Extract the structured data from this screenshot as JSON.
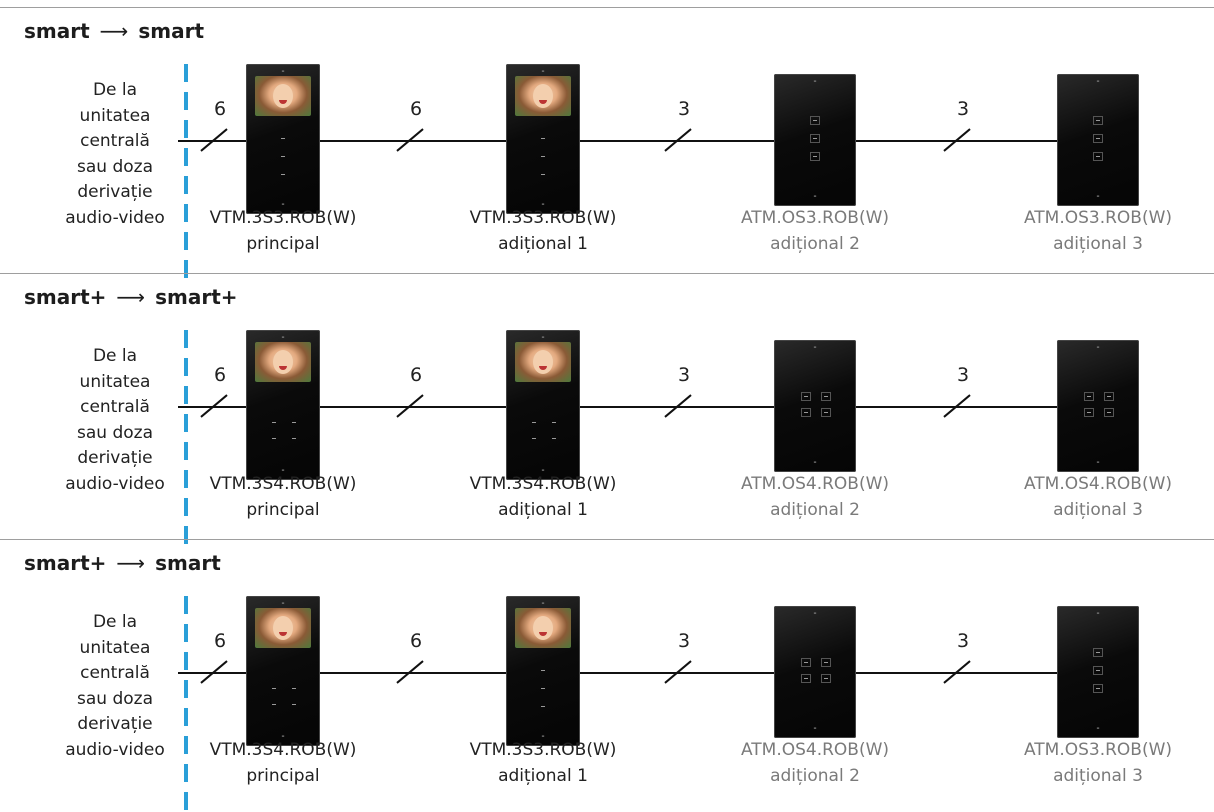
{
  "sections": [
    {
      "title_left": "smart",
      "arrow": "⟶",
      "title_right": "smart",
      "source_lines": [
        "De la",
        "unitatea",
        "centrală",
        "sau doza",
        "derivație",
        "audio-video"
      ],
      "wire_counts": [
        "6",
        "6",
        "3",
        "3"
      ],
      "devices": [
        {
          "model": "VTM.3S3.ROB(W)",
          "role": "principal",
          "type": "monitor",
          "buttons": "column"
        },
        {
          "model": "VTM.3S3.ROB(W)",
          "role": "adițional 1",
          "type": "monitor",
          "buttons": "column"
        },
        {
          "model": "ATM.OS3.ROB(W)",
          "role": "adițional 2",
          "type": "audio",
          "buttons": "column"
        },
        {
          "model": "ATM.OS3.ROB(W)",
          "role": "adițional 3",
          "type": "audio",
          "buttons": "column"
        }
      ]
    },
    {
      "title_left": "smart+",
      "arrow": "⟶",
      "title_right": "smart+",
      "source_lines": [
        "De la",
        "unitatea",
        "centrală",
        "sau doza",
        "derivație",
        "audio-video"
      ],
      "wire_counts": [
        "6",
        "6",
        "3",
        "3"
      ],
      "devices": [
        {
          "model": "VTM.3S4.ROB(W)",
          "role": "principal",
          "type": "monitor",
          "buttons": "grid"
        },
        {
          "model": "VTM.3S4.ROB(W)",
          "role": "adițional 1",
          "type": "monitor",
          "buttons": "grid"
        },
        {
          "model": "ATM.OS4.ROB(W)",
          "role": "adițional 2",
          "type": "audio",
          "buttons": "grid"
        },
        {
          "model": "ATM.OS4.ROB(W)",
          "role": "adițional 3",
          "type": "audio",
          "buttons": "grid"
        }
      ]
    },
    {
      "title_left": "smart+",
      "arrow": "⟶",
      "title_right": "smart",
      "source_lines": [
        "De la",
        "unitatea",
        "centrală",
        "sau doza",
        "derivație",
        "audio-video"
      ],
      "wire_counts": [
        "6",
        "6",
        "3",
        "3"
      ],
      "devices": [
        {
          "model": "VTM.3S4.ROB(W)",
          "role": "principal",
          "type": "monitor",
          "buttons": "grid"
        },
        {
          "model": "VTM.3S3.ROB(W)",
          "role": "adițional 1",
          "type": "monitor",
          "buttons": "column"
        },
        {
          "model": "ATM.OS4.ROB(W)",
          "role": "adițional 2",
          "type": "audio",
          "buttons": "grid"
        },
        {
          "model": "ATM.OS3.ROB(W)",
          "role": "adițional 3",
          "type": "audio",
          "buttons": "column"
        }
      ]
    }
  ],
  "colors": {
    "accent_dash": "#2a9fd8",
    "divider": "#9e9e9e",
    "audio_label": "#7a7a7a",
    "video_label": "#222222"
  }
}
